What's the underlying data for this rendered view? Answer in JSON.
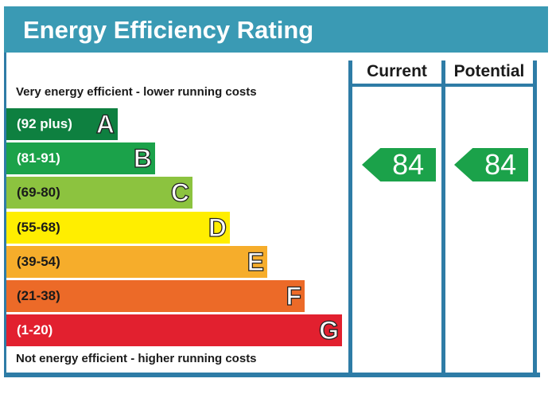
{
  "title": "Energy Efficiency Rating",
  "headers": {
    "current": "Current",
    "potential": "Potential"
  },
  "top_caption": "Very energy efficient - lower running costs",
  "bottom_caption": "Not energy efficient - higher running costs",
  "colors": {
    "header": "#3a9ab4",
    "frame": "#2e7ca6",
    "bands": [
      "#0e8040",
      "#1ba24a",
      "#8cc33f",
      "#ffee00",
      "#f6ad2b",
      "#ec6a28",
      "#e2202f"
    ]
  },
  "chart_data": {
    "type": "bar",
    "title": "Energy Efficiency Rating",
    "categories": [
      "A",
      "B",
      "C",
      "D",
      "E",
      "F",
      "G"
    ],
    "ranges": [
      "(92 plus)",
      "(81-91)",
      "(69-80)",
      "(55-68)",
      "(39-54)",
      "(21-38)",
      "(1-20)"
    ],
    "current": {
      "value": 84,
      "band": "B"
    },
    "potential": {
      "value": 84,
      "band": "B"
    }
  }
}
